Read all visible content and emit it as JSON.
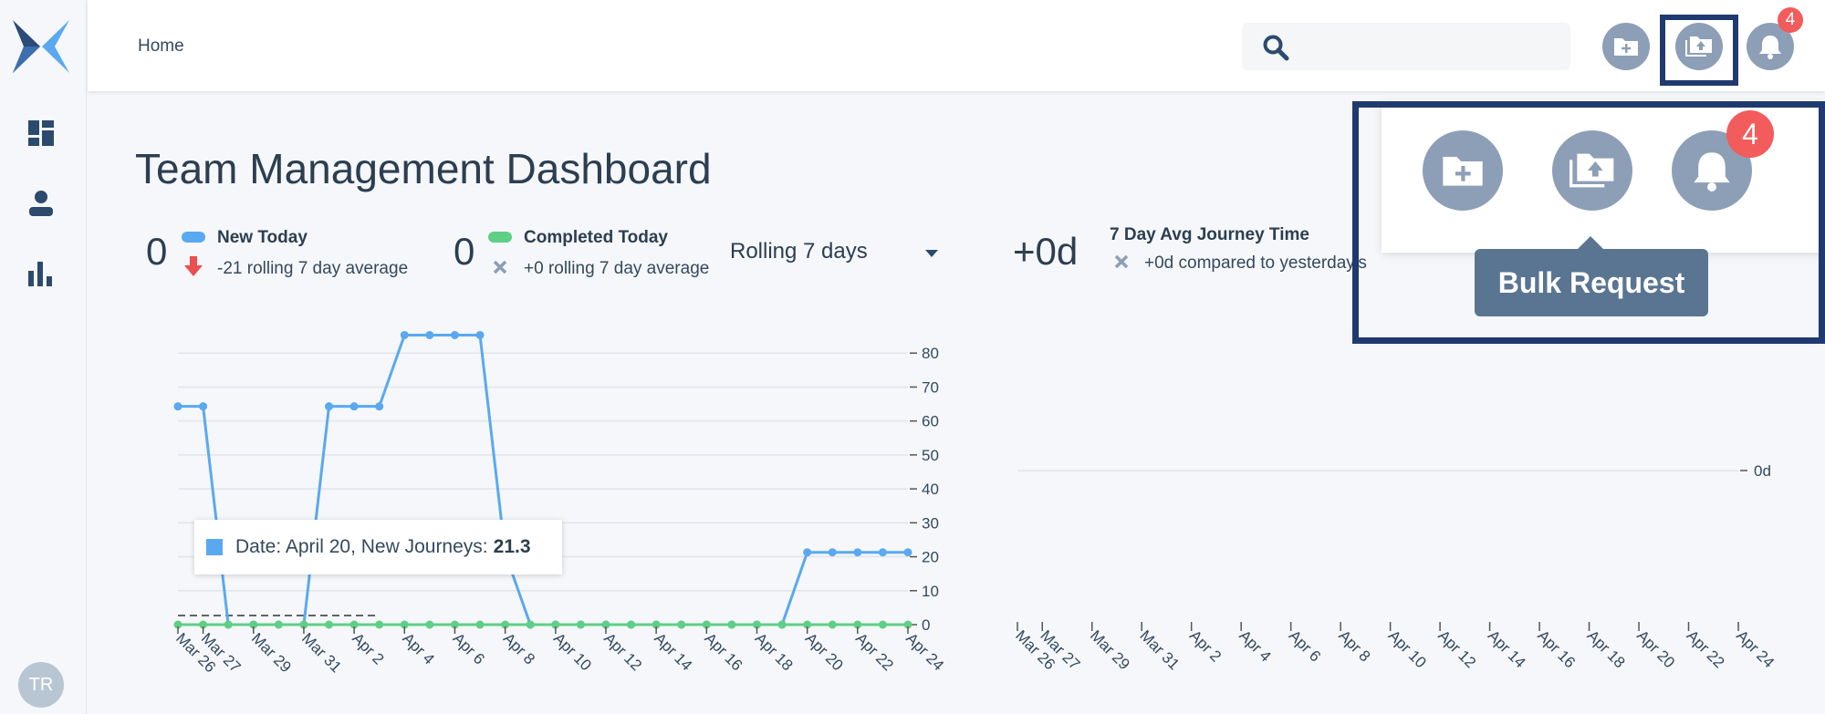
{
  "breadcrumb": "Home",
  "sidebar": {
    "items": [
      {
        "icon": "dashboard-icon"
      },
      {
        "icon": "user-icon"
      },
      {
        "icon": "bar-chart-icon"
      }
    ],
    "avatar_initials": "TR"
  },
  "header": {
    "notification_count": "4",
    "buttons": [
      "add-folder-icon",
      "upload-folder-icon",
      "bell-icon"
    ]
  },
  "page_title": "Team Management Dashboard",
  "stats": {
    "new_today": {
      "value": "0",
      "label": "New Today",
      "sub": "-21 rolling 7 day average",
      "color": "#5aa9f0"
    },
    "completed_today": {
      "value": "0",
      "label": "Completed Today",
      "sub": "+0 rolling 7 day average",
      "color": "#5fcf85"
    },
    "rolling_select": "Rolling 7 days",
    "avg_journey": {
      "value": "+0d",
      "label": "7 Day Avg Journey Time",
      "sub": "+0d compared to yesterday's"
    }
  },
  "tooltip": {
    "text": "Date: April 20, New Journeys:",
    "value": "21.3"
  },
  "popover": {
    "badge": "4",
    "tooltip": "Bulk Request"
  },
  "chart_data": [
    {
      "type": "line",
      "x": [
        "Mar 26",
        "Mar 27",
        "Mar 28",
        "Mar 29",
        "Mar 30",
        "Mar 31",
        "Apr 1",
        "Apr 2",
        "Apr 3",
        "Apr 4",
        "Apr 5",
        "Apr 6",
        "Apr 7",
        "Apr 8",
        "Apr 9",
        "Apr 10",
        "Apr 11",
        "Apr 12",
        "Apr 13",
        "Apr 14",
        "Apr 15",
        "Apr 16",
        "Apr 17",
        "Apr 18",
        "Apr 19",
        "Apr 20",
        "Apr 21",
        "Apr 22",
        "Apr 23",
        "Apr 24"
      ],
      "x_tick_labels": [
        "Mar 26",
        "Mar 27",
        "Mar 29",
        "Mar 31",
        "Apr 2",
        "Apr 4",
        "Apr 6",
        "Apr 8",
        "Apr 10",
        "Apr 12",
        "Apr 14",
        "Apr 16",
        "Apr 18",
        "Apr 20",
        "Apr 22",
        "Apr 24"
      ],
      "series": [
        {
          "color": "#5aa9f0",
          "values": [
            64.3,
            64.3,
            0,
            0,
            0,
            0,
            64.3,
            64.3,
            64.3,
            85.3,
            85.3,
            85.3,
            85.3,
            21,
            0,
            0,
            0,
            0,
            0,
            0,
            0,
            0,
            0,
            0,
            0,
            21.3,
            21.3,
            21.3,
            21.3,
            21.3
          ]
        },
        {
          "color": "#5fcf85",
          "values": [
            0,
            0,
            0,
            0,
            0,
            0,
            0,
            0,
            0,
            0,
            0,
            0,
            0,
            0,
            0,
            0,
            0,
            0,
            0,
            0,
            0,
            0,
            0,
            0,
            0,
            0,
            0,
            0,
            0,
            0
          ]
        }
      ],
      "y_ticks": [
        0,
        10,
        20,
        30,
        40,
        50,
        60,
        70,
        80
      ],
      "ylim": [
        0,
        90
      ],
      "grid": true
    },
    {
      "type": "line",
      "x_tick_labels": [
        "Mar 26",
        "Mar 27",
        "Mar 29",
        "Mar 31",
        "Apr 2",
        "Apr 4",
        "Apr 6",
        "Apr 8",
        "Apr 10",
        "Apr 12",
        "Apr 14",
        "Apr 16",
        "Apr 18",
        "Apr 20",
        "Apr 22",
        "Apr 24"
      ],
      "y_tick_label": "0d",
      "grid": true
    }
  ]
}
